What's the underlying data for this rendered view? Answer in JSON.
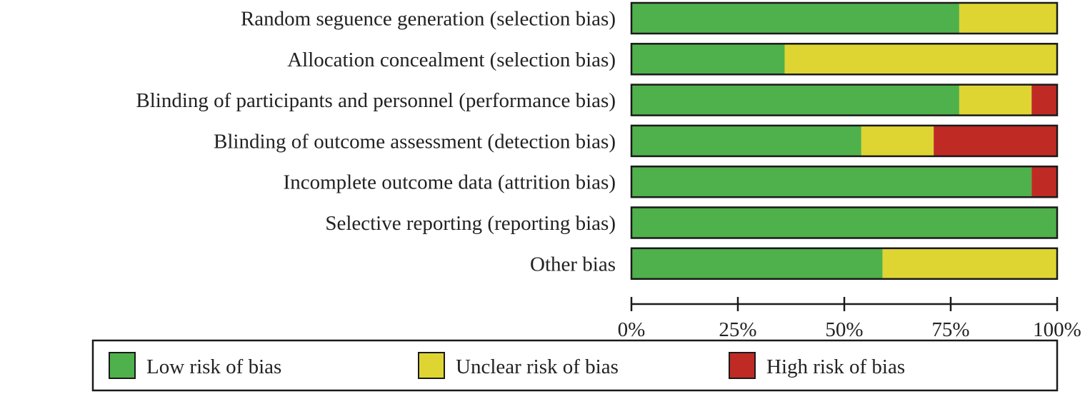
{
  "chart_data": {
    "type": "bar",
    "orientation": "horizontal",
    "stacked": true,
    "categories": [
      "Random seguence generation (selection bias)",
      "Allocation concealment (selection bias)",
      "Blinding of participants and personnel (performance bias)",
      "Blinding of outcome assessment (detection bias)",
      "Incomplete outcome data (attrition bias)",
      "Selective reporting (reporting bias)",
      "Other bias"
    ],
    "series": [
      {
        "name": "Low risk of bias",
        "color": "#4fb14b",
        "values": [
          77,
          36,
          77,
          54,
          94,
          100,
          59
        ]
      },
      {
        "name": "Unclear risk of bias",
        "color": "#dfd532",
        "values": [
          23,
          64,
          17,
          17,
          0,
          0,
          41
        ]
      },
      {
        "name": "High risk of bias",
        "color": "#c02a25",
        "values": [
          0,
          0,
          6,
          29,
          6,
          0,
          0
        ]
      }
    ],
    "x_ticks": [
      "0%",
      "25%",
      "50%",
      "75%",
      "100%"
    ],
    "xlim": [
      0,
      100
    ],
    "legend_position": "bottom",
    "grid": false
  }
}
